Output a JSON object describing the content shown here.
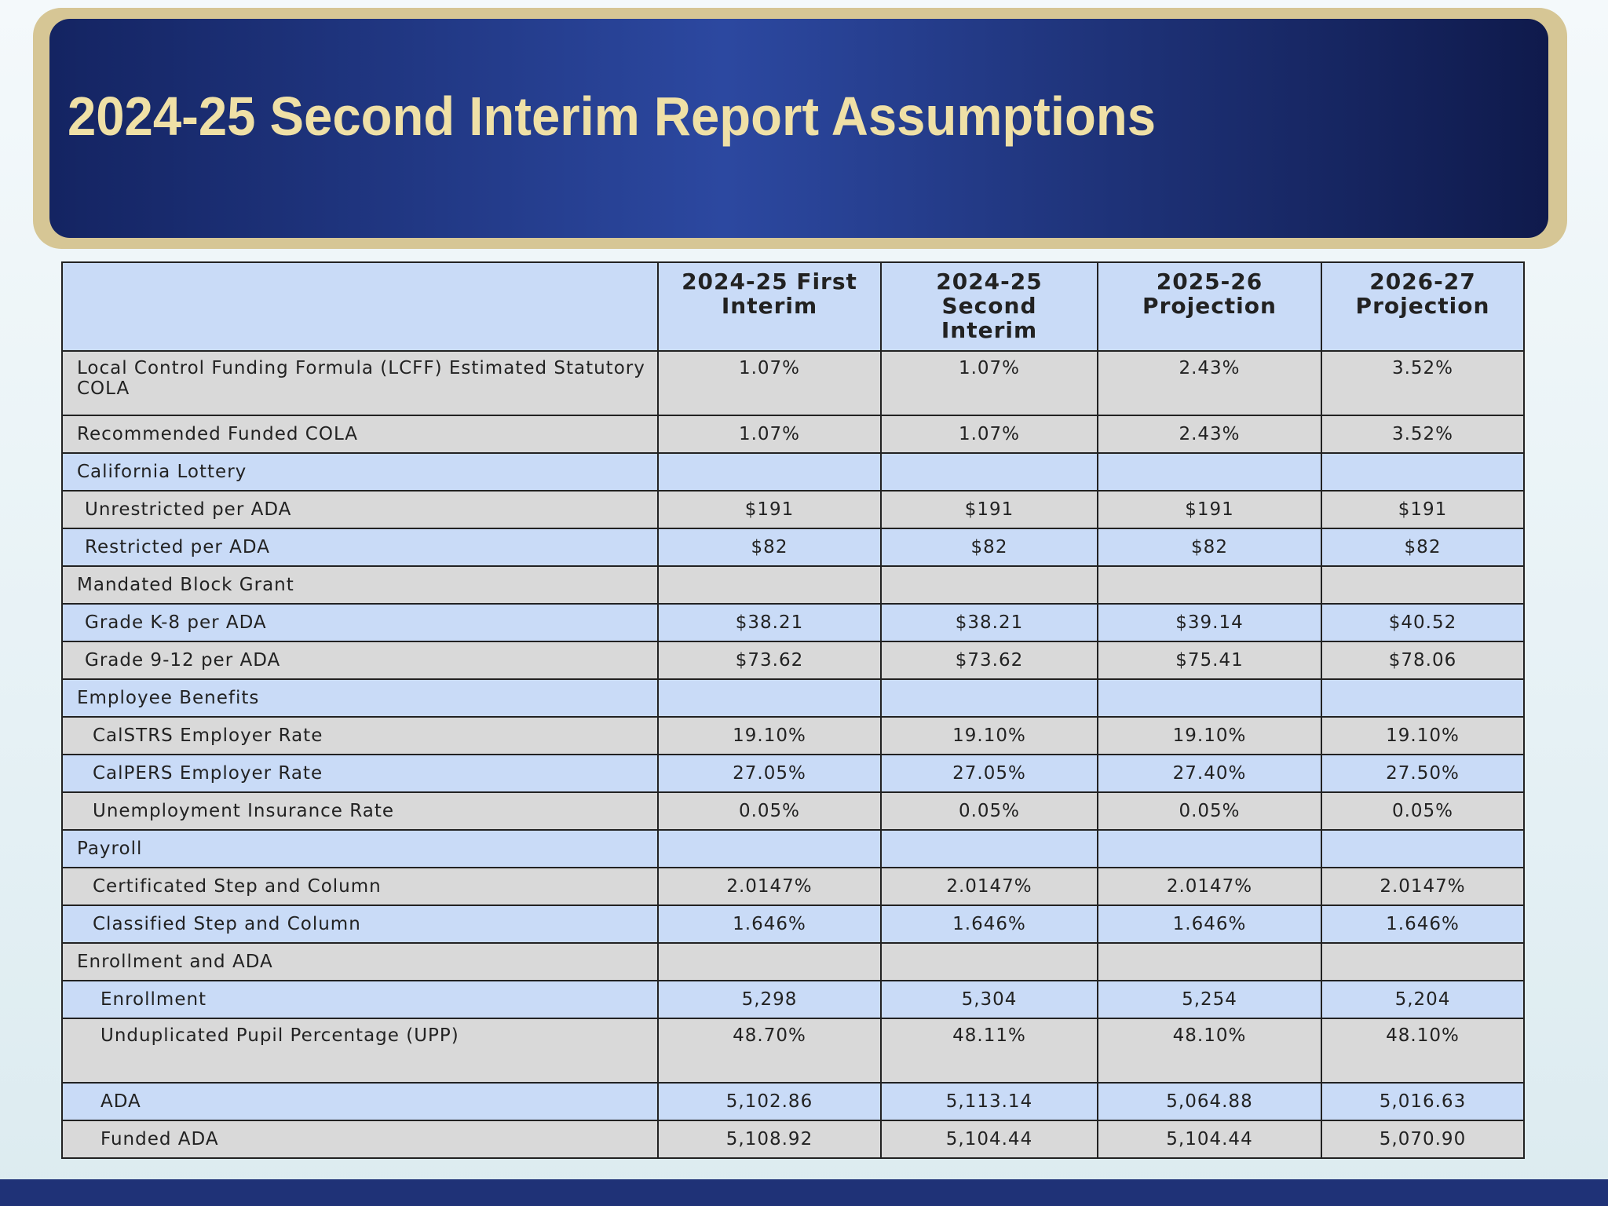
{
  "header": {
    "title": "2024-25 Second Interim Report Assumptions"
  },
  "table": {
    "columns": [
      "2024-25 First Interim",
      "2024-25 Second Interim",
      "2025-26 Projection",
      "2026-27 Projection"
    ],
    "rows": [
      [
        "Local Control Funding Formula (LCFF) Estimated Statutory COLA",
        "1.07%",
        "1.07%",
        "2.43%",
        "3.52%"
      ],
      [
        "Recommended Funded COLA",
        "1.07%",
        "1.07%",
        "2.43%",
        "3.52%"
      ],
      [
        "California Lottery",
        "",
        "",
        "",
        ""
      ],
      [
        "Unrestricted per ADA",
        "$191",
        "$191",
        "$191",
        "$191"
      ],
      [
        "Restricted per ADA",
        "$82",
        "$82",
        "$82",
        "$82"
      ],
      [
        "Mandated Block Grant",
        "",
        "",
        "",
        ""
      ],
      [
        "Grade K-8 per ADA",
        "$38.21",
        "$38.21",
        "$39.14",
        "$40.52"
      ],
      [
        "Grade 9-12 per ADA",
        "$73.62",
        "$73.62",
        "$75.41",
        "$78.06"
      ],
      [
        "Employee Benefits",
        "",
        "",
        "",
        ""
      ],
      [
        "CalSTRS Employer Rate",
        "19.10%",
        "19.10%",
        "19.10%",
        "19.10%"
      ],
      [
        "CalPERS Employer Rate",
        "27.05%",
        "27.05%",
        "27.40%",
        "27.50%"
      ],
      [
        "Unemployment Insurance Rate",
        "0.05%",
        "0.05%",
        "0.05%",
        "0.05%"
      ],
      [
        "Payroll",
        "",
        "",
        "",
        ""
      ],
      [
        "Certificated Step and Column",
        "2.0147%",
        "2.0147%",
        "2.0147%",
        "2.0147%"
      ],
      [
        "Classified Step and Column",
        "1.646%",
        "1.646%",
        "1.646%",
        "1.646%"
      ],
      [
        "Enrollment and ADA",
        "",
        "",
        "",
        ""
      ],
      [
        "Enrollment",
        "5,298",
        "5,304",
        "5,254",
        "5,204"
      ],
      [
        "Unduplicated Pupil Percentage (UPP)",
        "48.70%",
        "48.11%",
        "48.10%",
        "48.10%"
      ],
      [
        "ADA",
        "5,102.86",
        "5,113.14",
        "5,064.88",
        "5,016.63"
      ],
      [
        "Funded ADA",
        "5,108.92",
        "5,104.44",
        "5,104.44",
        "5,070.90"
      ]
    ]
  }
}
